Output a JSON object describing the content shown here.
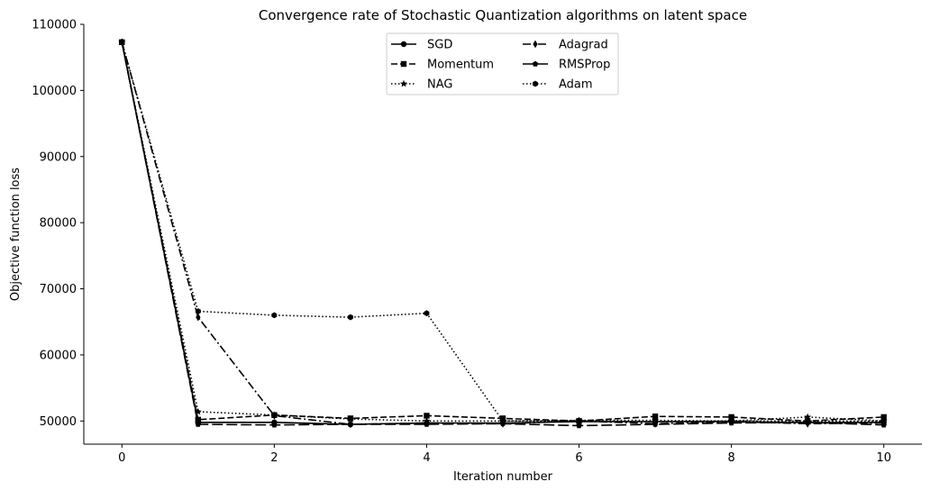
{
  "chart_data": {
    "type": "line",
    "title": "Convergence rate of Stochastic Quantization algorithms on latent space",
    "xlabel": "Iteration number",
    "ylabel": "Objective function loss",
    "xlim": [
      -0.5,
      10.5
    ],
    "ylim": [
      46500,
      110000
    ],
    "xticks": [
      0,
      2,
      4,
      6,
      8,
      10
    ],
    "yticks": [
      50000,
      60000,
      70000,
      80000,
      90000,
      100000,
      110000
    ],
    "legend_position": "top-center",
    "legend_columns": 2,
    "grid": false,
    "x": [
      0,
      1,
      2,
      3,
      4,
      5,
      6,
      7,
      8,
      9,
      10
    ],
    "series": [
      {
        "name": "SGD",
        "linestyle": "solid",
        "marker": "circle",
        "color": "#000000",
        "values": [
          107300,
          49800,
          49800,
          49500,
          49700,
          49700,
          49900,
          49900,
          49900,
          49800,
          49800
        ]
      },
      {
        "name": "Momentum",
        "linestyle": "dashed",
        "marker": "square",
        "color": "#000000",
        "values": [
          107300,
          50200,
          50900,
          50400,
          50800,
          50400,
          50000,
          50700,
          50600,
          50000,
          50600
        ]
      },
      {
        "name": "NAG",
        "linestyle": "dotted",
        "marker": "star",
        "color": "#000000",
        "values": [
          107300,
          51400,
          50900,
          50300,
          50000,
          50000,
          50100,
          50100,
          50000,
          50600,
          50000
        ]
      },
      {
        "name": "Adagrad",
        "linestyle": "dashdot",
        "marker": "diamond",
        "color": "#000000",
        "values": [
          107300,
          65700,
          50800,
          49500,
          49700,
          49600,
          50000,
          49600,
          49900,
          49600,
          49700
        ]
      },
      {
        "name": "RMSProp",
        "linestyle": "longdash",
        "marker": "pentagon",
        "color": "#000000",
        "values": [
          107300,
          49500,
          49400,
          49500,
          49500,
          49600,
          49300,
          49500,
          49700,
          49800,
          49400
        ]
      },
      {
        "name": "Adam",
        "linestyle": "dotted",
        "marker": "hexagon",
        "color": "#000000",
        "values": [
          107300,
          66600,
          66000,
          65700,
          66300,
          50000,
          50000,
          49900,
          50000,
          50000,
          50000
        ]
      }
    ]
  }
}
